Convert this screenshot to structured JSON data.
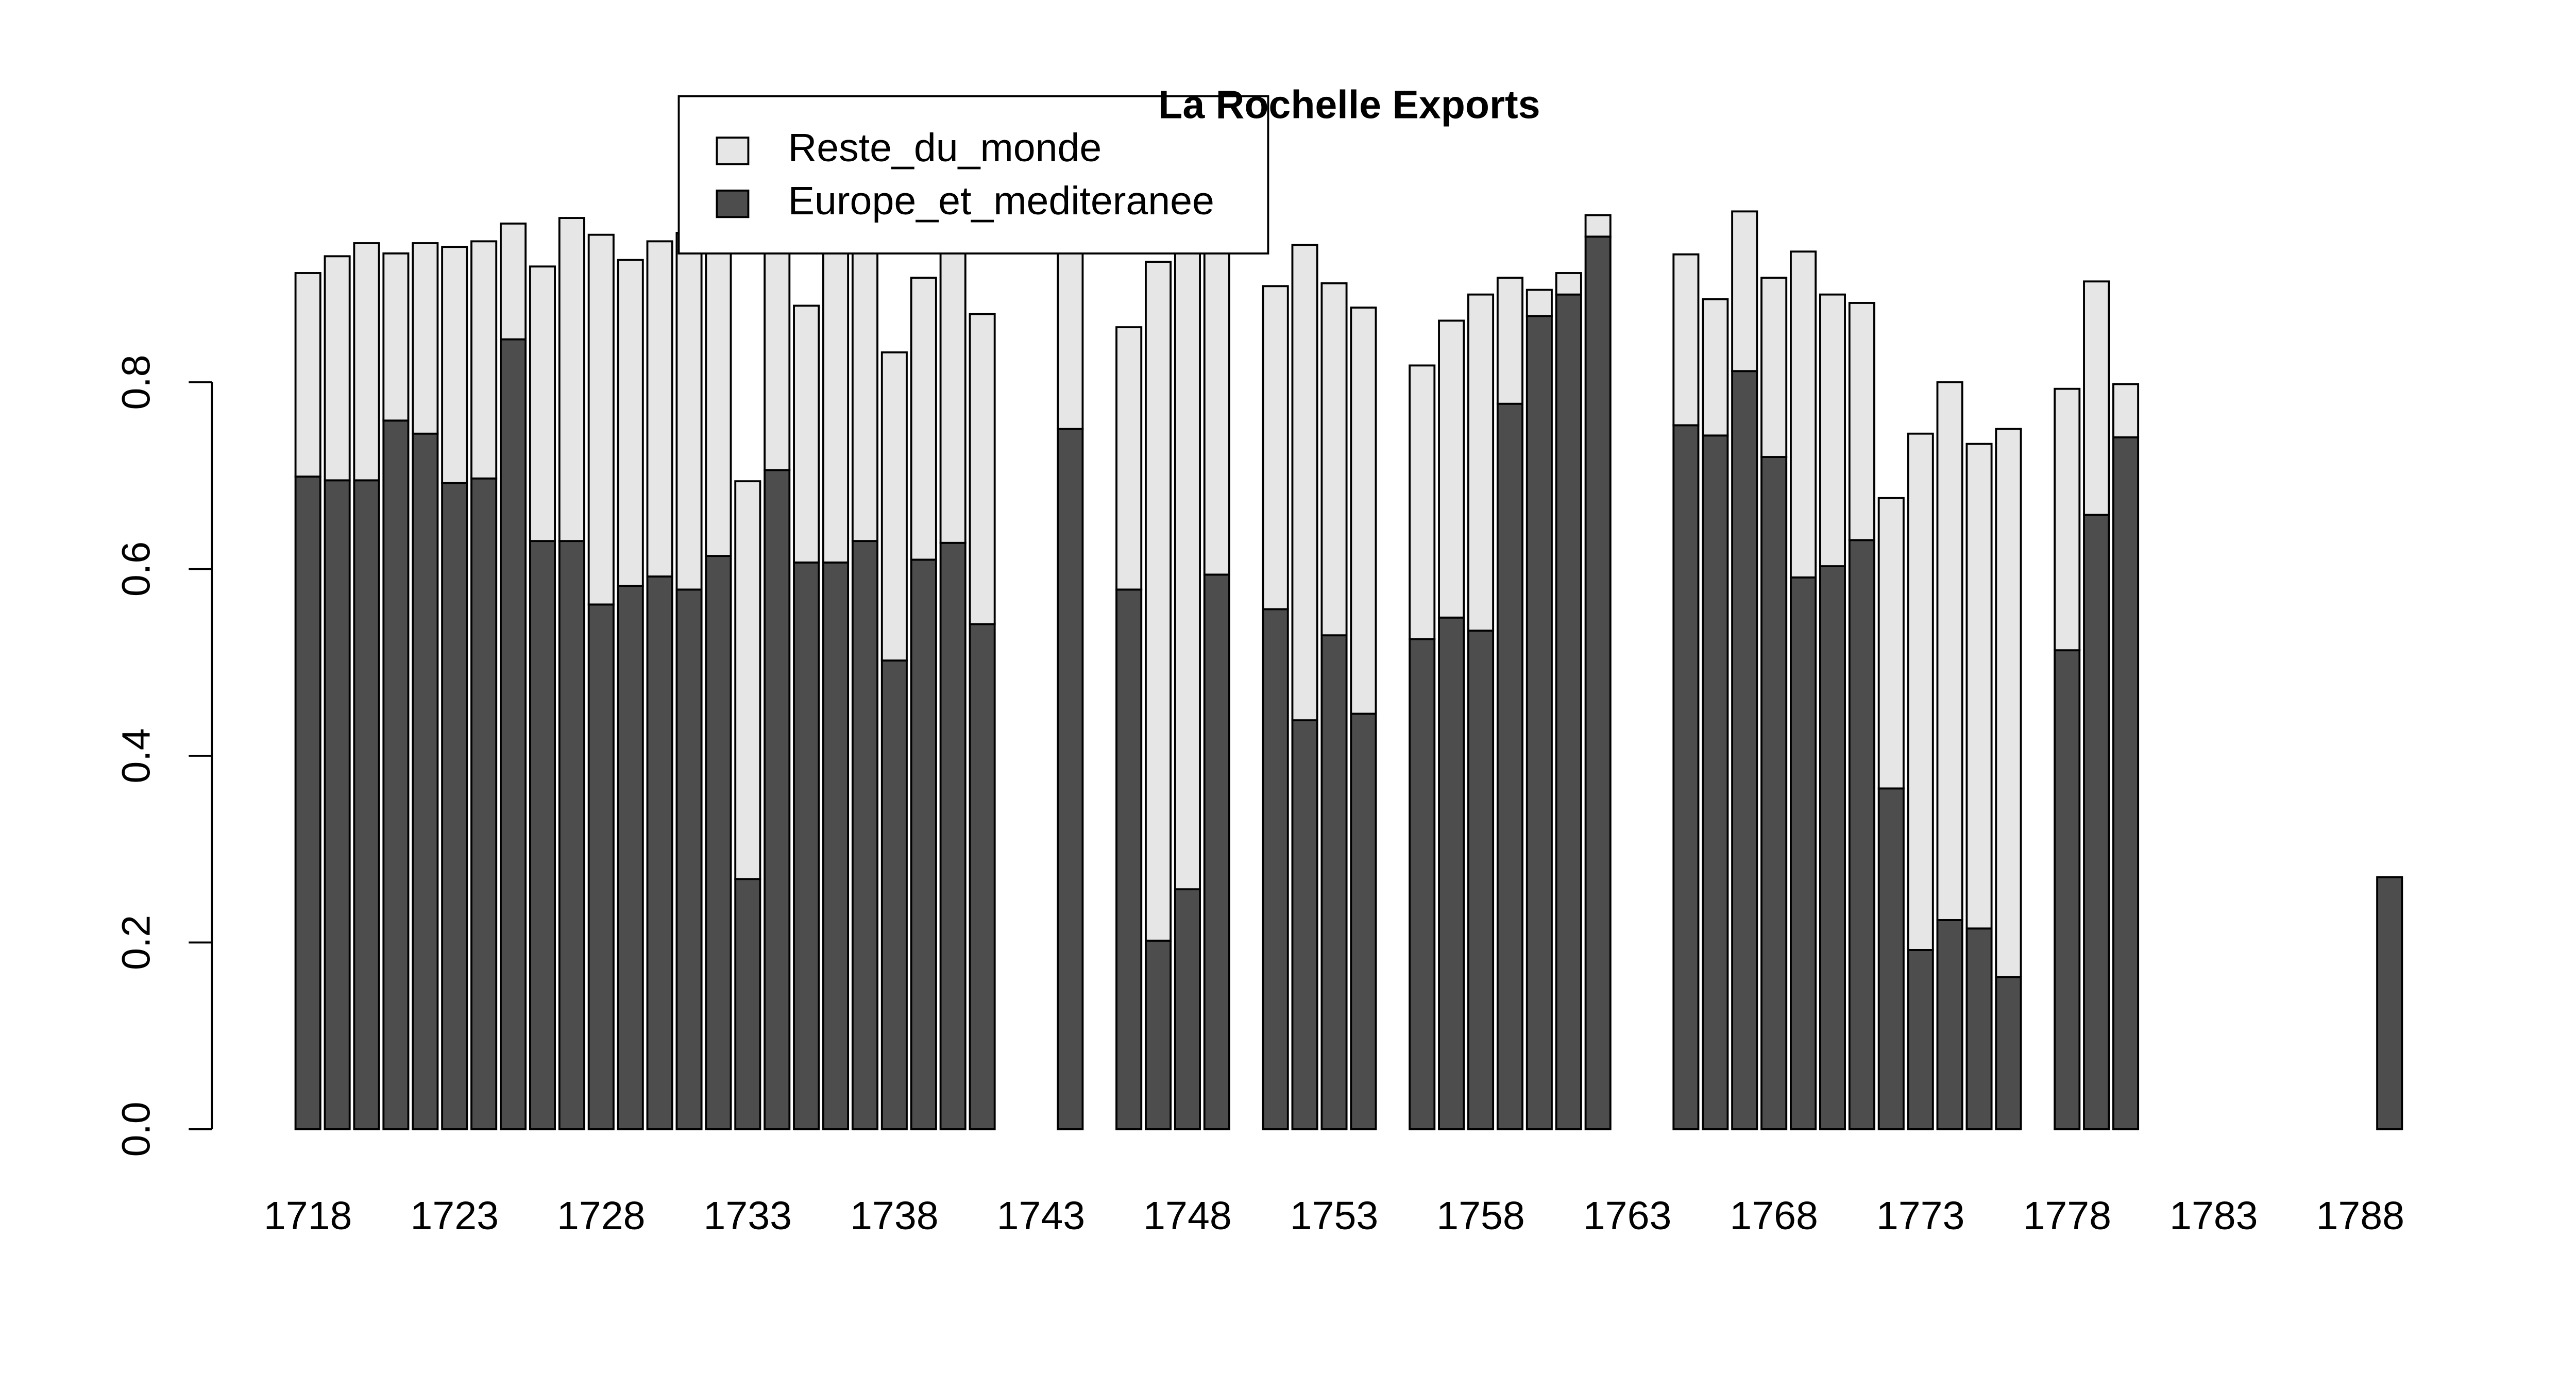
{
  "chart_data": {
    "type": "stacked_bar",
    "title": "La Rochelle Exports",
    "categories": [
      "1718",
      null,
      null,
      null,
      null,
      "1723",
      null,
      null,
      null,
      null,
      "1728",
      null,
      null,
      null,
      null,
      "1733",
      null,
      null,
      null,
      null,
      "1738",
      null,
      null,
      null,
      null,
      "1743",
      null,
      null,
      null,
      null,
      "1748",
      null,
      null,
      null,
      null,
      "1753",
      null,
      null,
      null,
      null,
      "1758",
      null,
      null,
      null,
      null,
      "1763",
      null,
      null,
      null,
      null,
      "1768",
      null,
      null,
      null,
      null,
      "1773",
      null,
      null,
      null,
      null,
      "1778",
      null,
      null,
      null,
      null,
      "1783",
      null,
      null,
      null,
      null,
      "1788",
      null
    ],
    "series": [
      {
        "name": "Europe_et_mediteranee",
        "color": "#4d4d4d",
        "values": [
          0.699,
          0.695,
          0.695,
          0.759,
          0.745,
          0.692,
          0.697,
          0.846,
          0.63,
          0.63,
          0.562,
          0.582,
          0.592,
          0.578,
          0.614,
          0.268,
          0.706,
          0.607,
          0.607,
          0.63,
          0.502,
          0.61,
          0.628,
          0.541,
          null,
          null,
          0.75,
          null,
          0.578,
          0.202,
          0.257,
          0.594,
          null,
          0.557,
          0.438,
          0.529,
          0.445,
          null,
          0.525,
          0.548,
          0.534,
          0.777,
          0.871,
          0.894,
          0.956,
          null,
          null,
          0.754,
          0.743,
          0.812,
          0.72,
          0.591,
          0.603,
          0.631,
          0.365,
          0.192,
          0.224,
          0.215,
          0.163,
          null,
          0.513,
          0.658,
          0.741,
          null,
          null,
          null,
          null,
          null,
          null,
          null,
          null,
          0.27
        ]
      },
      {
        "name": "Reste_du_monde",
        "color": "#e6e6e6",
        "values": [
          0.218,
          0.24,
          0.254,
          0.179,
          0.204,
          0.253,
          0.254,
          0.124,
          0.294,
          0.346,
          0.396,
          0.349,
          0.359,
          0.382,
          0.356,
          0.426,
          0.254,
          0.275,
          0.343,
          0.32,
          0.33,
          0.302,
          0.312,
          0.332,
          null,
          null,
          0.2,
          null,
          0.281,
          0.727,
          0.703,
          0.366,
          null,
          0.346,
          0.509,
          0.377,
          0.435,
          null,
          0.293,
          0.318,
          0.36,
          0.135,
          0.028,
          0.023,
          0.023,
          null,
          null,
          0.183,
          0.146,
          0.171,
          0.192,
          0.349,
          0.291,
          0.254,
          0.311,
          0.553,
          0.576,
          0.519,
          0.587,
          null,
          0.28,
          0.25,
          0.057,
          null,
          null,
          null,
          null,
          null,
          null,
          null,
          null,
          null
        ]
      }
    ],
    "legend_order": [
      "Reste_du_monde",
      "Europe_et_mediteranee"
    ],
    "ylim": [
      0,
      1.0
    ],
    "yticks": [
      {
        "value": 0,
        "label": "0.0"
      },
      0.2,
      0.4,
      0.6,
      0.8
    ],
    "legend": "top"
  }
}
